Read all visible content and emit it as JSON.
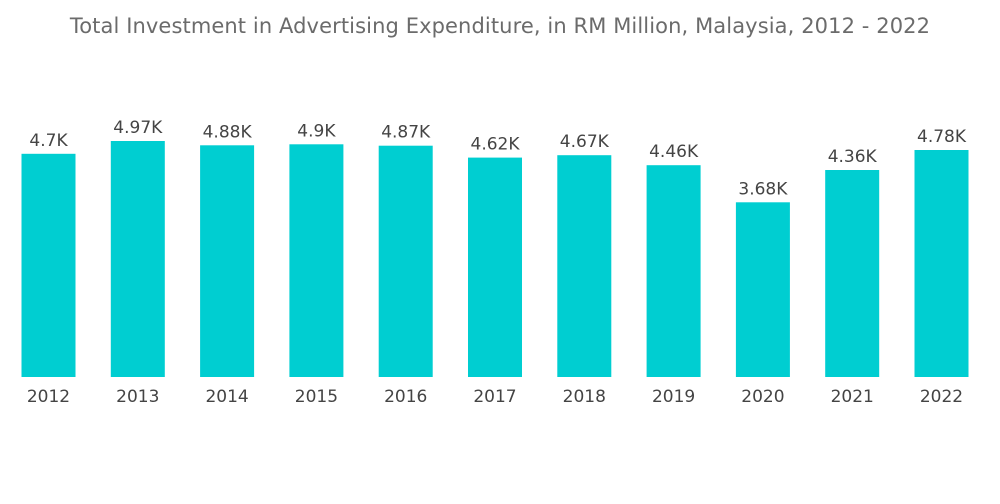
{
  "chart_data": {
    "type": "bar",
    "title": "Total Investment in Advertising Expenditure, in RM Million, Malaysia, 2012 - 2022",
    "xlabel": "",
    "ylabel": "",
    "ylim": [
      0,
      4970
    ],
    "grid": false,
    "bar_color": "#00ced1",
    "categories": [
      "2012",
      "2013",
      "2014",
      "2015",
      "2016",
      "2017",
      "2018",
      "2019",
      "2020",
      "2021",
      "2022"
    ],
    "values": [
      4700,
      4970,
      4880,
      4900,
      4870,
      4620,
      4670,
      4460,
      3680,
      4360,
      4780
    ],
    "value_labels": [
      "4.7K",
      "4.97K",
      "4.88K",
      "4.9K",
      "4.87K",
      "4.62K",
      "4.67K",
      "4.46K",
      "3.68K",
      "4.36K",
      "4.78K"
    ]
  }
}
